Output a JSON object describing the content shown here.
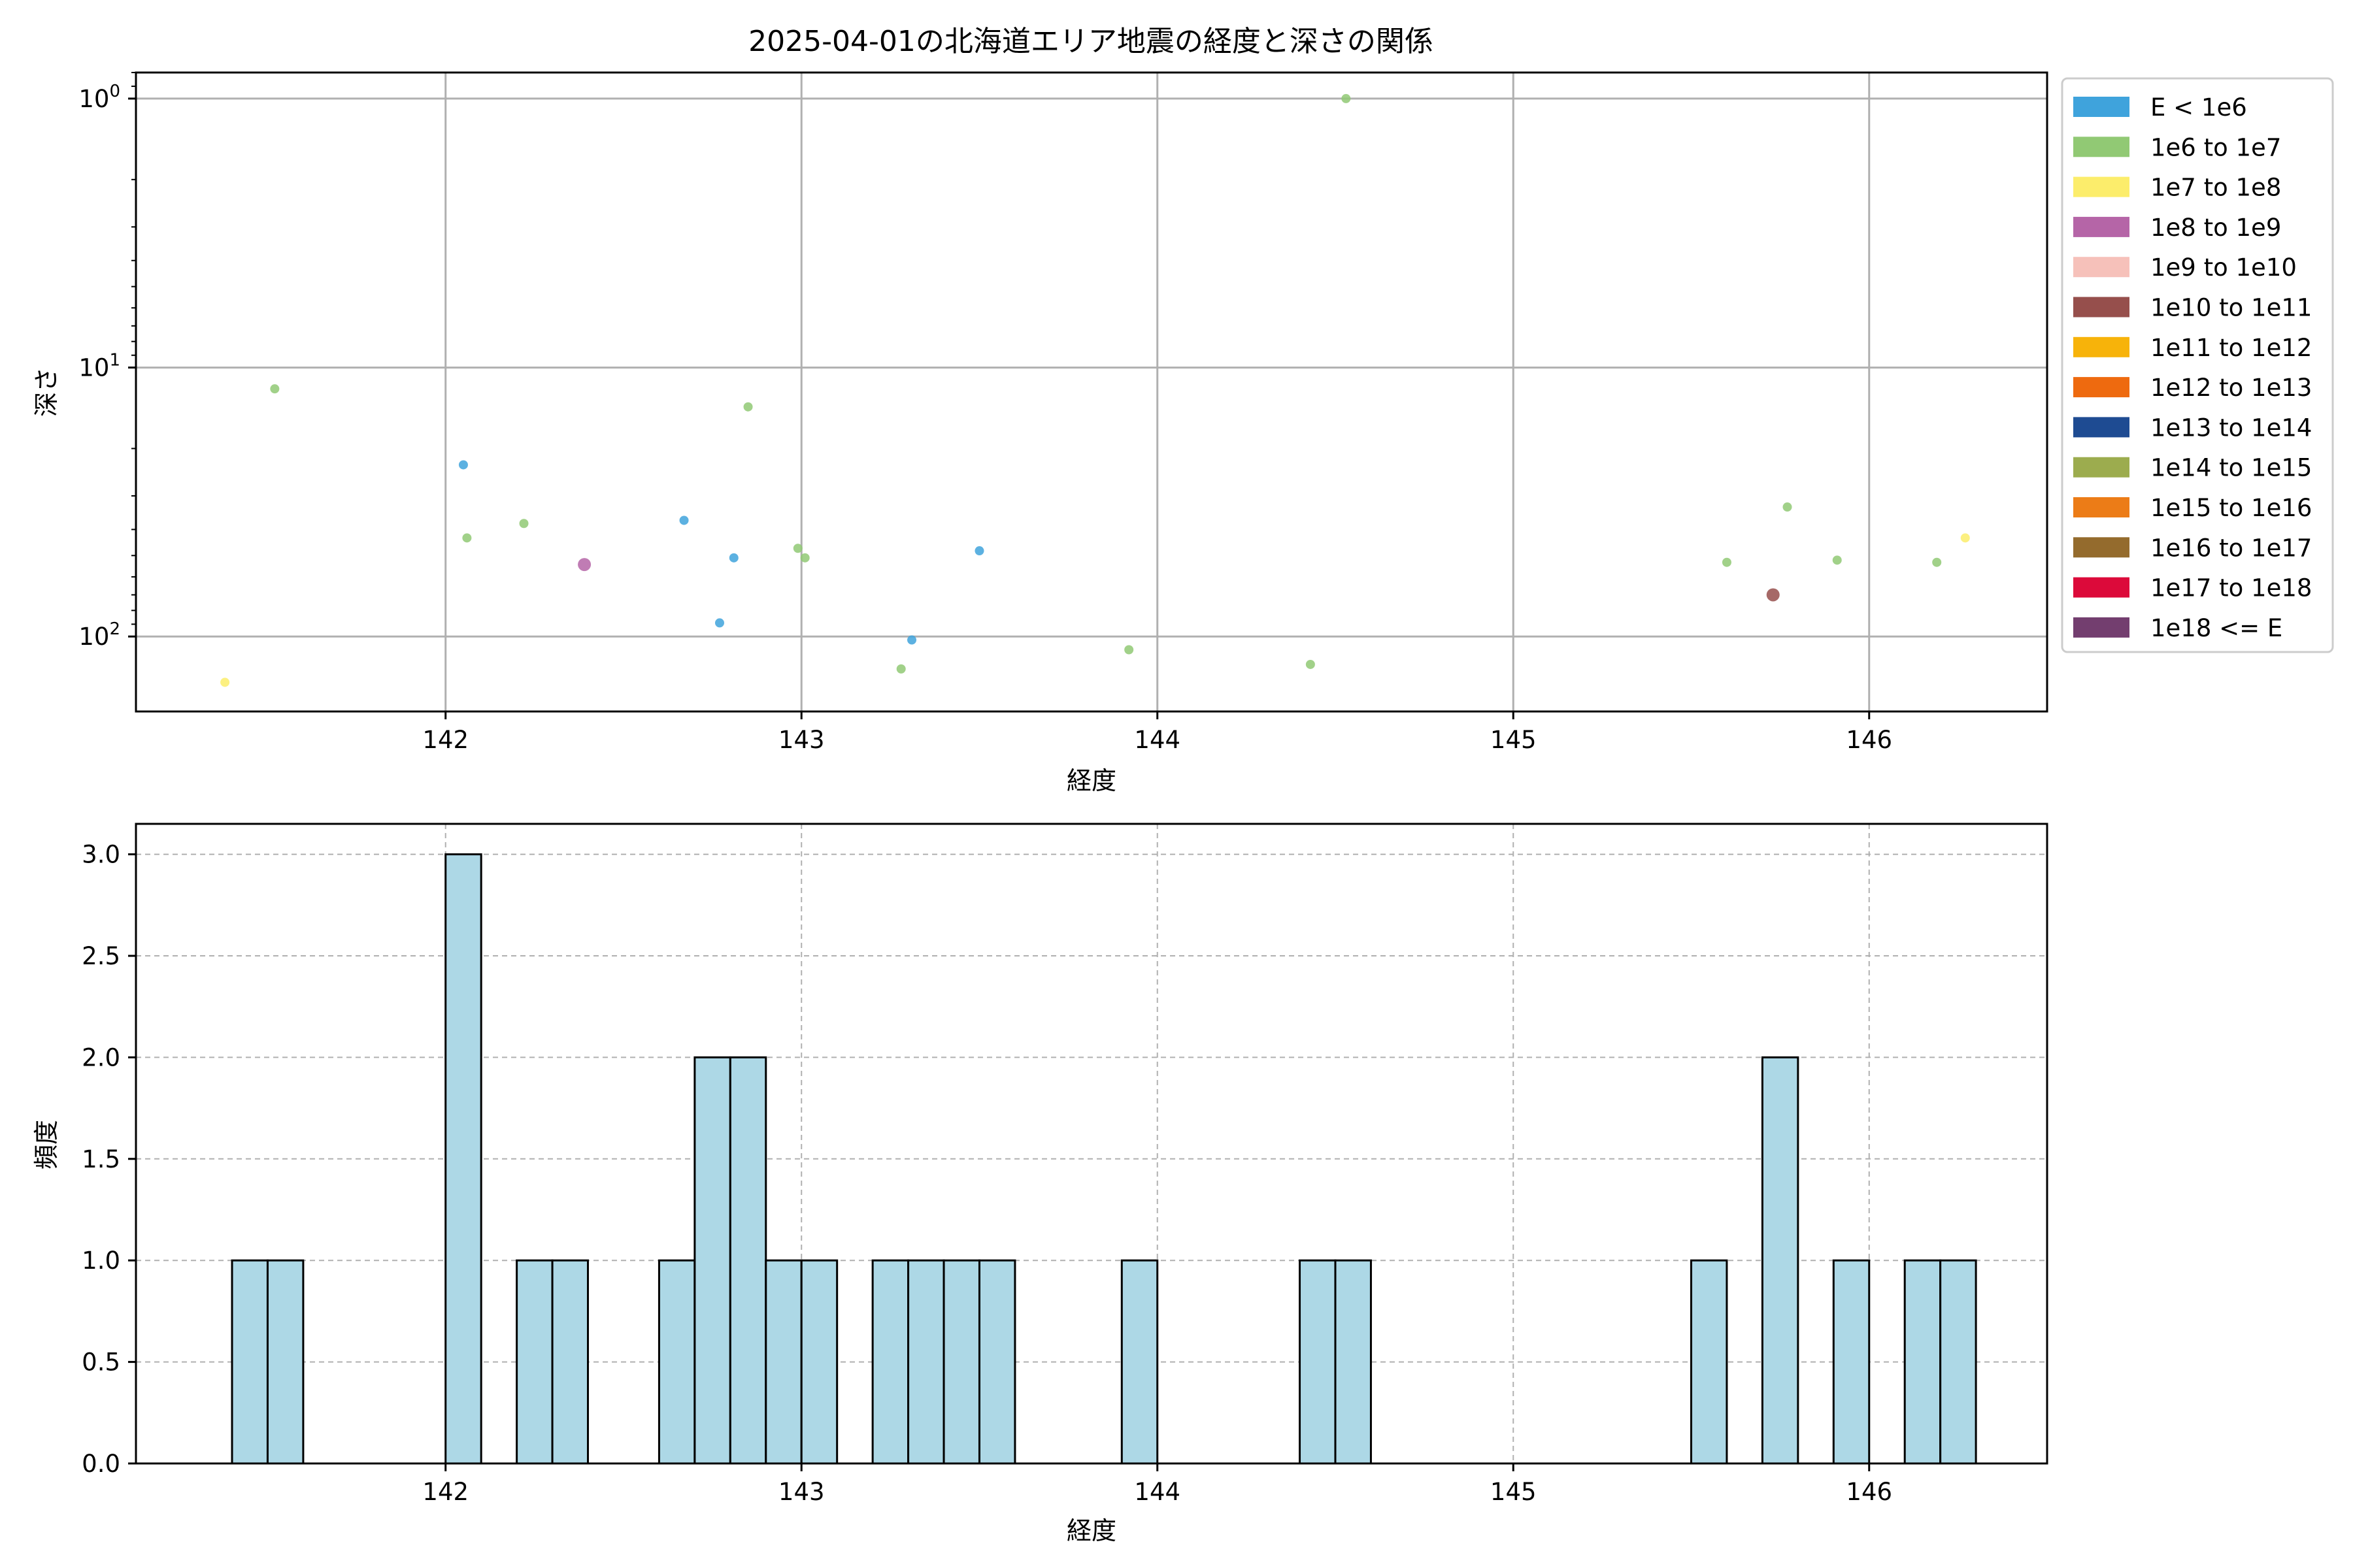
{
  "chart_data": [
    {
      "type": "scatter",
      "title": "2025-04-01の北海道エリア地震の経度と深さの関係",
      "xlabel": "経度",
      "ylabel": "深さ",
      "xlim": [
        141.13,
        146.5
      ],
      "ylim": [
        190,
        0.8
      ],
      "y_scale": "log",
      "y_inverted": true,
      "grid": true,
      "xticks": [
        142,
        143,
        144,
        145,
        146
      ],
      "xtick_labels": [
        "142",
        "143",
        "144",
        "145",
        "146"
      ],
      "yticks": [
        1,
        10,
        100
      ],
      "ytick_labels": [
        "10^0",
        "10^1",
        "10^2"
      ],
      "legend_position": "outside-right",
      "legend": [
        {
          "label": "E < 1e6",
          "color": "#3fa3dc"
        },
        {
          "label": "1e6 to 1e7",
          "color": "#91c974"
        },
        {
          "label": "1e7 to 1e8",
          "color": "#fced6b"
        },
        {
          "label": "1e8 to 1e9",
          "color": "#b565a7"
        },
        {
          "label": "1e9 to 1e10",
          "color": "#f6c1ba"
        },
        {
          "label": "1e10 to 1e11",
          "color": "#964f4c"
        },
        {
          "label": "1e11 to 1e12",
          "color": "#f7b30a"
        },
        {
          "label": "1e12 to 1e13",
          "color": "#ee6a0f"
        },
        {
          "label": "1e13 to 1e14",
          "color": "#1e4b92"
        },
        {
          "label": "1e14 to 1e15",
          "color": "#9cac4e"
        },
        {
          "label": "1e15 to 1e16",
          "color": "#ec7c17"
        },
        {
          "label": "1e16 to 1e17",
          "color": "#946b2d"
        },
        {
          "label": "1e17 to 1e18",
          "color": "#dc0a3a"
        },
        {
          "label": "1e18 <= E",
          "color": "#733e6f"
        }
      ],
      "points": [
        {
          "x": 141.38,
          "y": 148,
          "class": "1e7 to 1e8"
        },
        {
          "x": 141.52,
          "y": 12,
          "class": "1e6 to 1e7"
        },
        {
          "x": 142.05,
          "y": 23,
          "class": "E < 1e6"
        },
        {
          "x": 142.06,
          "y": 43,
          "class": "1e6 to 1e7"
        },
        {
          "x": 142.22,
          "y": 38,
          "class": "1e6 to 1e7"
        },
        {
          "x": 142.39,
          "y": 54,
          "class": "1e8 to 1e9"
        },
        {
          "x": 142.67,
          "y": 37,
          "class": "E < 1e6"
        },
        {
          "x": 142.77,
          "y": 89,
          "class": "E < 1e6"
        },
        {
          "x": 142.81,
          "y": 51,
          "class": "E < 1e6"
        },
        {
          "x": 142.85,
          "y": 14,
          "class": "1e6 to 1e7"
        },
        {
          "x": 142.99,
          "y": 47,
          "class": "1e6 to 1e7"
        },
        {
          "x": 143.01,
          "y": 51,
          "class": "1e6 to 1e7"
        },
        {
          "x": 143.28,
          "y": 132,
          "class": "1e6 to 1e7"
        },
        {
          "x": 143.31,
          "y": 103,
          "class": "E < 1e6"
        },
        {
          "x": 143.5,
          "y": 48,
          "class": "E < 1e6"
        },
        {
          "x": 143.92,
          "y": 112,
          "class": "1e6 to 1e7"
        },
        {
          "x": 144.43,
          "y": 127,
          "class": "1e6 to 1e7"
        },
        {
          "x": 144.53,
          "y": 1,
          "class": "1e6 to 1e7"
        },
        {
          "x": 145.6,
          "y": 53,
          "class": "1e6 to 1e7"
        },
        {
          "x": 145.73,
          "y": 70,
          "class": "1e10 to 1e11"
        },
        {
          "x": 145.77,
          "y": 33,
          "class": "1e6 to 1e7"
        },
        {
          "x": 145.91,
          "y": 52,
          "class": "1e6 to 1e7"
        },
        {
          "x": 146.19,
          "y": 53,
          "class": "1e6 to 1e7"
        },
        {
          "x": 146.27,
          "y": 43,
          "class": "1e7 to 1e8"
        }
      ]
    },
    {
      "type": "bar",
      "subtype": "histogram",
      "xlabel": "経度",
      "ylabel": "頻度",
      "xlim": [
        141.13,
        146.5
      ],
      "ylim": [
        0,
        3.15
      ],
      "grid": true,
      "grid_style": "dashed",
      "bar_color": "#add8e6",
      "edge_color": "#000000",
      "bin_width": 0.1,
      "xticks": [
        142,
        143,
        144,
        145,
        146
      ],
      "xtick_labels": [
        "142",
        "143",
        "144",
        "145",
        "146"
      ],
      "yticks": [
        0,
        0.5,
        1,
        1.5,
        2,
        2.5,
        3
      ],
      "ytick_labels": [
        "0.0",
        "0.5",
        "1.0",
        "1.5",
        "2.0",
        "2.5",
        "3.0"
      ],
      "bins": [
        {
          "start": 141.4,
          "count": 1
        },
        {
          "start": 141.5,
          "count": 1
        },
        {
          "start": 142.0,
          "count": 3
        },
        {
          "start": 142.2,
          "count": 1
        },
        {
          "start": 142.3,
          "count": 1
        },
        {
          "start": 142.6,
          "count": 1
        },
        {
          "start": 142.7,
          "count": 2
        },
        {
          "start": 142.8,
          "count": 2
        },
        {
          "start": 142.9,
          "count": 1
        },
        {
          "start": 143.0,
          "count": 1
        },
        {
          "start": 143.2,
          "count": 1
        },
        {
          "start": 143.3,
          "count": 1
        },
        {
          "start": 143.4,
          "count": 1
        },
        {
          "start": 143.5,
          "count": 1
        },
        {
          "start": 143.9,
          "count": 1
        },
        {
          "start": 144.4,
          "count": 1
        },
        {
          "start": 144.5,
          "count": 1
        },
        {
          "start": 145.5,
          "count": 1
        },
        {
          "start": 145.7,
          "count": 2
        },
        {
          "start": 145.9,
          "count": 1
        },
        {
          "start": 146.1,
          "count": 1
        },
        {
          "start": 146.2,
          "count": 1
        }
      ]
    }
  ]
}
